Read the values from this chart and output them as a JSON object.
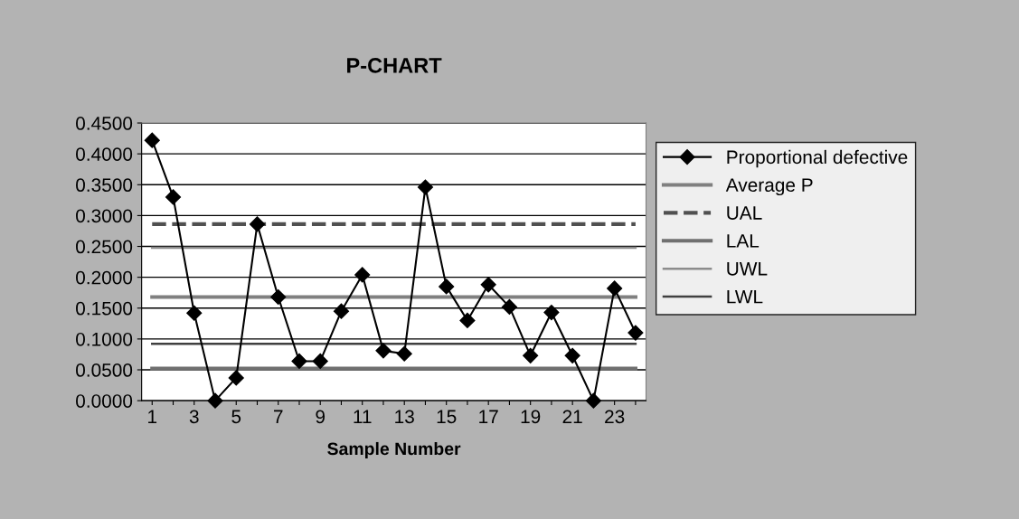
{
  "chart_data": {
    "type": "line",
    "title": "P-CHART",
    "xlabel": "Sample Number",
    "categories": [
      "1",
      null,
      "3",
      null,
      "5",
      null,
      "7",
      null,
      "9",
      null,
      "11",
      null,
      "13",
      null,
      "15",
      null,
      "17",
      null,
      "19",
      null,
      "21",
      null,
      "23",
      null
    ],
    "series": [
      {
        "name": "Proportional defective",
        "color": "#000000",
        "marker": "diamond",
        "line_style": "solid",
        "values": [
          0.422,
          0.33,
          0.142,
          0.0,
          0.037,
          0.286,
          0.168,
          0.064,
          0.064,
          0.145,
          0.204,
          0.081,
          0.076,
          0.346,
          0.185,
          0.13,
          0.188,
          0.152,
          0.073,
          0.143,
          0.073,
          0.0,
          0.182,
          0.11
        ]
      },
      {
        "name": "Average P",
        "color": "#808080",
        "marker": "none",
        "line_style": "solid",
        "values": [
          0.168,
          0.168,
          0.168,
          0.168,
          0.168,
          0.168,
          0.168,
          0.168,
          0.168,
          0.168,
          0.168,
          0.168,
          0.168,
          0.168,
          0.168,
          0.168,
          0.168,
          0.168,
          0.168,
          0.168,
          0.168,
          0.168,
          0.168,
          0.168
        ]
      },
      {
        "name": "UAL",
        "color": "#505050",
        "marker": "none",
        "line_style": "dashed",
        "values": [
          0.286,
          0.286,
          0.286,
          0.286,
          0.286,
          0.286,
          0.286,
          0.286,
          0.286,
          0.286,
          0.286,
          0.286,
          0.286,
          0.286,
          0.286,
          0.286,
          0.286,
          0.286,
          0.286,
          0.286,
          0.286,
          0.286,
          0.286,
          0.286
        ]
      },
      {
        "name": "LAL",
        "color": "#707070",
        "marker": "none",
        "line_style": "solid",
        "values": [
          0.052,
          0.052,
          0.052,
          0.052,
          0.052,
          0.052,
          0.052,
          0.052,
          0.052,
          0.052,
          0.052,
          0.052,
          0.052,
          0.052,
          0.052,
          0.052,
          0.052,
          0.052,
          0.052,
          0.052,
          0.052,
          0.052,
          0.052,
          0.052
        ]
      },
      {
        "name": "UWL",
        "color": "#8c8c8c",
        "marker": "none",
        "line_style": "solid",
        "values": [
          0.248,
          0.248,
          0.248,
          0.248,
          0.248,
          0.248,
          0.248,
          0.248,
          0.248,
          0.248,
          0.248,
          0.248,
          0.248,
          0.248,
          0.248,
          0.248,
          0.248,
          0.248,
          0.248,
          0.248,
          0.248,
          0.248,
          0.248,
          0.248
        ]
      },
      {
        "name": "LWL",
        "color": "#404040",
        "marker": "none",
        "line_style": "solid",
        "values": [
          0.092,
          0.092,
          0.092,
          0.092,
          0.092,
          0.092,
          0.092,
          0.092,
          0.092,
          0.092,
          0.092,
          0.092,
          0.092,
          0.092,
          0.092,
          0.092,
          0.092,
          0.092,
          0.092,
          0.092,
          0.092,
          0.092,
          0.092,
          0.092
        ]
      }
    ],
    "ylim": [
      0,
      0.45
    ],
    "yticks": [
      {
        "value": 0,
        "label": "0.0000"
      },
      {
        "value": 0.05,
        "label": "0.0500"
      },
      {
        "value": 0.1,
        "label": "0.1000"
      },
      {
        "value": 0.15,
        "label": "0.1500"
      },
      {
        "value": 0.2,
        "label": "0.2000"
      },
      {
        "value": 0.25,
        "label": "0.2500"
      },
      {
        "value": 0.3,
        "label": "0.3000"
      },
      {
        "value": 0.35,
        "label": "0.3500"
      },
      {
        "value": 0.4,
        "label": "0.4000"
      },
      {
        "value": 0.45,
        "label": "0.4500"
      }
    ],
    "grid": "y",
    "legend": "right"
  }
}
